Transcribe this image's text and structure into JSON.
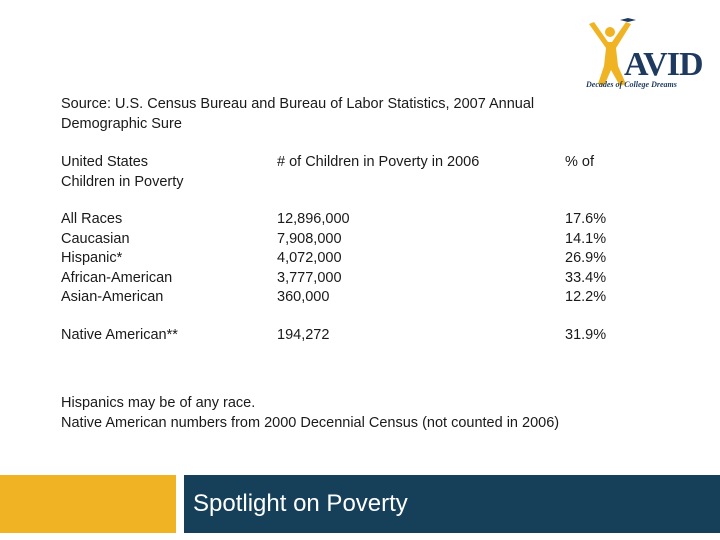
{
  "logo": {
    "wordmark": "AVID",
    "tagline": "Decades of College Dreams",
    "colors": {
      "figure": "#f0b323",
      "wordmark": "#1e3a5f"
    }
  },
  "source": [
    "Source: U.S. Census Bureau and Bureau of Labor Statistics, 2007 Annual",
    "Demographic Sure"
  ],
  "table": {
    "headers": {
      "group": [
        "United States",
        "Children in Poverty"
      ],
      "count": "# of Children in Poverty in 2006",
      "percent": "% of"
    },
    "rows": [
      {
        "group": "All Races",
        "count": "12,896,000",
        "percent": "17.6%"
      },
      {
        "group": "Caucasian",
        "count": "7,908,000",
        "percent": "14.1%"
      },
      {
        "group": "Hispanic*",
        "count": "4,072,000",
        "percent": "26.9%"
      },
      {
        "group": "African-American",
        "count": "3,777,000",
        "percent": "33.4%"
      },
      {
        "group": "Asian-American",
        "count": "360,000",
        "percent": "12.2%"
      },
      {
        "group": "Native American**",
        "count": "194,272",
        "percent": "31.9%"
      }
    ]
  },
  "notes": [
    "Hispanics may be of any race.",
    "Native American numbers from 2000 Decennial Census (not counted in 2006)"
  ],
  "footer": {
    "title": "Spotlight on Poverty",
    "colors": {
      "accent": "#f0b323",
      "bar": "#16405a"
    }
  }
}
